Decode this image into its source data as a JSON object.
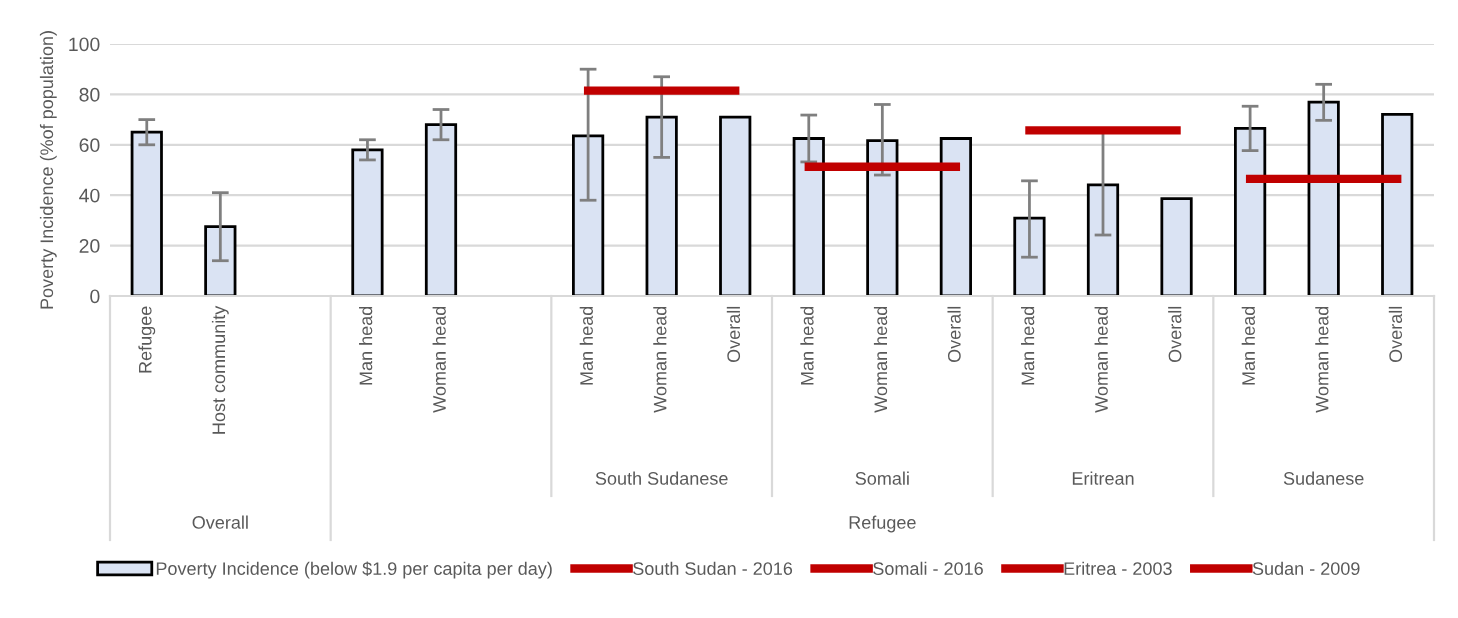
{
  "chart_data": {
    "type": "bar",
    "ylabel": "Poverty Incidence (%of population)",
    "categories": [
      "Refugee",
      "Host community",
      null,
      "Man head",
      "Woman head",
      null,
      "Man head",
      "Woman head",
      "Overall",
      "Man head",
      "Woman head",
      "Overall",
      "Man head",
      "Woman head",
      "Overall",
      "Man head",
      "Woman head",
      "Overall"
    ],
    "series": [
      {
        "name": "Poverty Incidence (below $1.9 per capita per day)",
        "color": "#dae3f3",
        "values": [
          65,
          27.5,
          null,
          58,
          68,
          null,
          63.5,
          71,
          71,
          62.5,
          61.7,
          62.5,
          30.9,
          44.1,
          38.6,
          66.5,
          76.9,
          72.1
        ],
        "errors": [
          [
            60,
            70
          ],
          [
            14,
            41
          ],
          null,
          [
            54,
            62
          ],
          [
            62,
            74
          ],
          null,
          [
            38,
            90
          ],
          [
            55,
            87
          ],
          null,
          [
            53.2,
            71.8
          ],
          [
            48,
            76
          ],
          null,
          [
            15.4,
            45.7
          ],
          [
            24.2,
            65
          ],
          null,
          [
            57.7,
            75.3
          ],
          [
            69.7,
            84
          ],
          null
        ]
      },
      {
        "name": "South Sudan - 2016",
        "type": "line",
        "color": "#c00000",
        "values": [
          null,
          null,
          null,
          null,
          null,
          null,
          81.5,
          81.5,
          81.5,
          null,
          null,
          null,
          null,
          null,
          null,
          null,
          null,
          null
        ]
      },
      {
        "name": "Somali - 2016",
        "type": "line",
        "color": "#c00000",
        "values": [
          null,
          null,
          null,
          null,
          null,
          null,
          null,
          null,
          null,
          51.3,
          51.3,
          51.3,
          null,
          null,
          null,
          null,
          null,
          null
        ]
      },
      {
        "name": "Eritrea - 2003",
        "type": "line",
        "color": "#c00000",
        "values": [
          null,
          null,
          null,
          null,
          null,
          null,
          null,
          null,
          null,
          null,
          null,
          null,
          65.7,
          65.7,
          65.7,
          null,
          null,
          null
        ]
      },
      {
        "name": "Sudan - 2009",
        "type": "line",
        "color": "#c00000",
        "values": [
          null,
          null,
          null,
          null,
          null,
          null,
          null,
          null,
          null,
          null,
          null,
          null,
          null,
          null,
          null,
          46.5,
          46.5,
          46.5
        ]
      }
    ],
    "annotations": [
      "South Sudanese",
      "Somali",
      "Eritrean",
      "Sudanese",
      "Overall",
      "Refugee"
    ],
    "ylim": [
      0,
      100
    ],
    "yticks": [
      0,
      20,
      40,
      60,
      80,
      100
    ],
    "grid": "y",
    "legend": "bottom"
  }
}
